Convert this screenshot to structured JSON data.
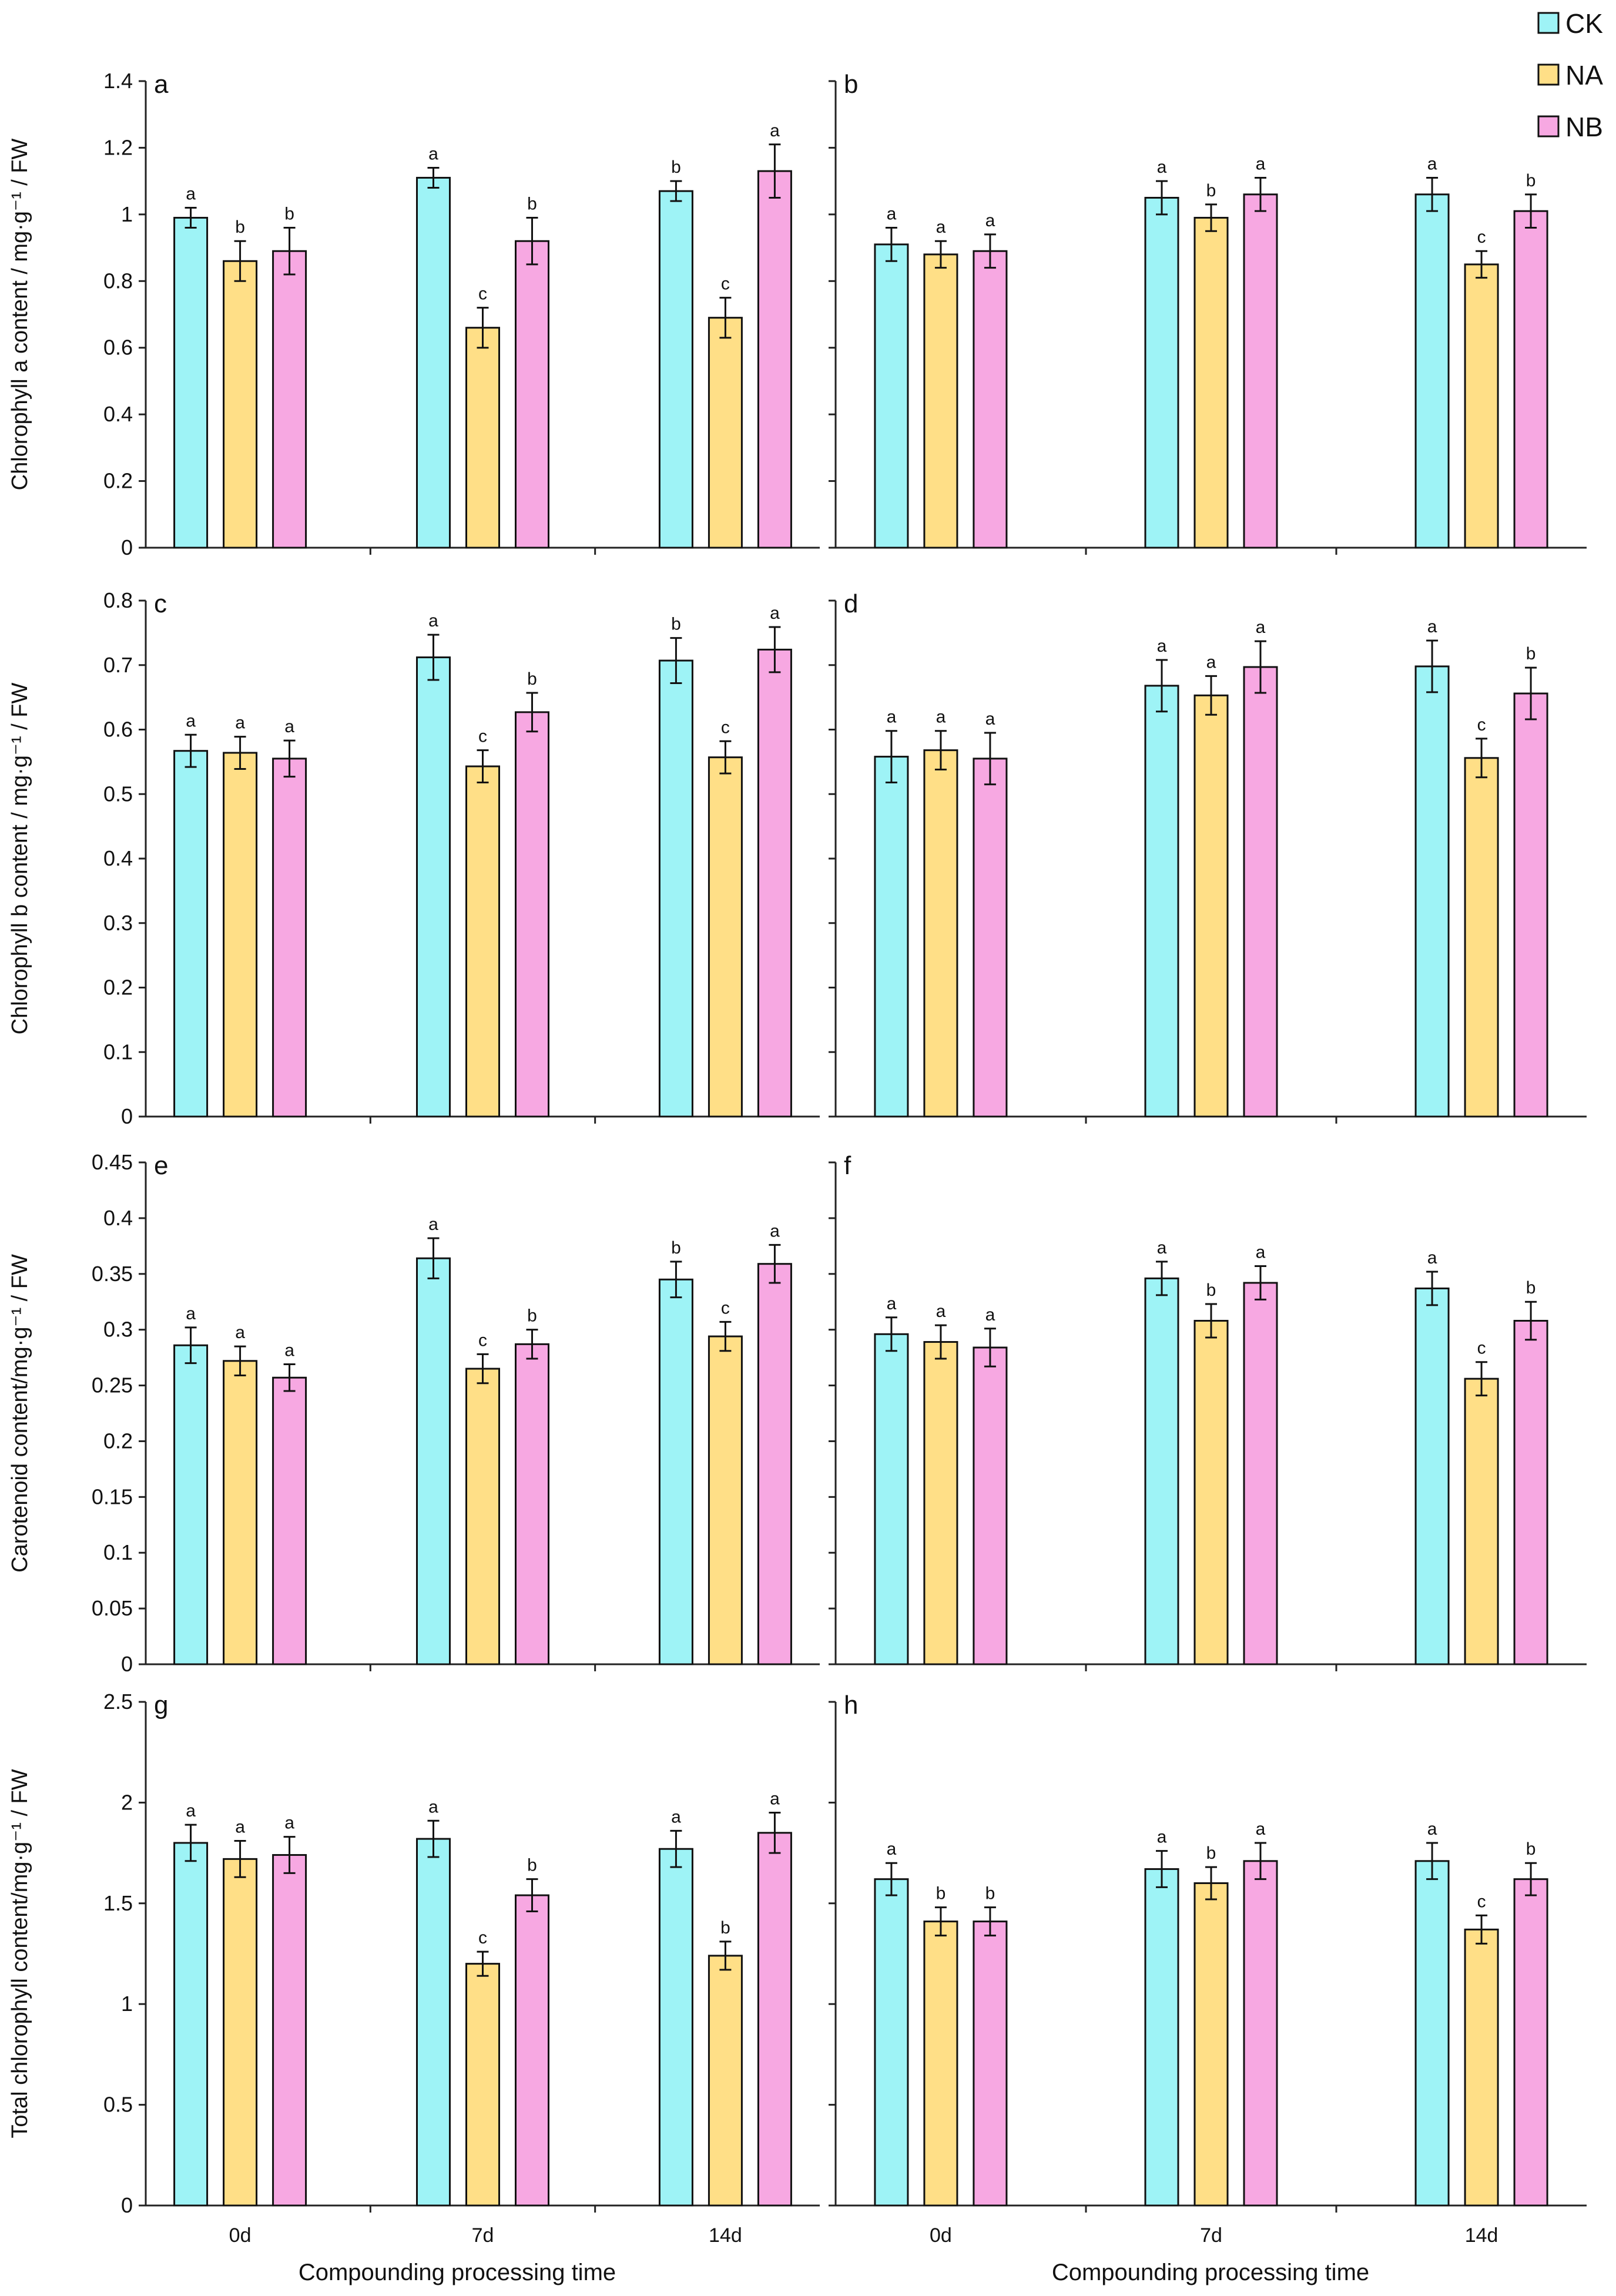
{
  "figure": {
    "series": [
      "CK",
      "NA",
      "NB"
    ],
    "colors": {
      "CK": "#9ef3f6",
      "NA": "#ffdf87",
      "NB": "#f7a8e2"
    },
    "categories": [
      "0d",
      "7d",
      "14d"
    ],
    "xlabel": "Compounding processing time"
  },
  "chart_data": [
    {
      "type": "bar",
      "panel": "a",
      "ylabel": "Chlorophyll a content / mg·g⁻¹ / FW",
      "ylim": [
        0,
        1.4
      ],
      "yticks": [
        "0",
        "0.2",
        "0.4",
        "0.6",
        "0.8",
        "1",
        "1.2",
        "1.4"
      ],
      "categories": [
        "0d",
        "7d",
        "14d"
      ],
      "series": [
        {
          "name": "CK",
          "values": [
            0.99,
            1.11,
            1.07
          ],
          "errors": [
            0.03,
            0.03,
            0.03
          ],
          "letters": [
            "a",
            "a",
            "b"
          ]
        },
        {
          "name": "NA",
          "values": [
            0.86,
            0.66,
            0.69
          ],
          "errors": [
            0.06,
            0.06,
            0.06
          ],
          "letters": [
            "b",
            "c",
            "c"
          ]
        },
        {
          "name": "NB",
          "values": [
            0.89,
            0.92,
            1.13
          ],
          "errors": [
            0.07,
            0.07,
            0.08
          ],
          "letters": [
            "b",
            "b",
            "a"
          ]
        }
      ]
    },
    {
      "type": "bar",
      "panel": "b",
      "ylabel": "",
      "ylim": [
        0,
        1.4
      ],
      "yticks": [],
      "categories": [
        "0d",
        "7d",
        "14d"
      ],
      "series": [
        {
          "name": "CK",
          "values": [
            0.91,
            1.05,
            1.06
          ],
          "errors": [
            0.05,
            0.05,
            0.05
          ],
          "letters": [
            "a",
            "a",
            "a"
          ]
        },
        {
          "name": "NA",
          "values": [
            0.88,
            0.99,
            0.85
          ],
          "errors": [
            0.04,
            0.04,
            0.04
          ],
          "letters": [
            "a",
            "b",
            "c"
          ]
        },
        {
          "name": "NB",
          "values": [
            0.89,
            1.06,
            1.01
          ],
          "errors": [
            0.05,
            0.05,
            0.05
          ],
          "letters": [
            "a",
            "a",
            "b"
          ]
        }
      ]
    },
    {
      "type": "bar",
      "panel": "c",
      "ylabel": "Chlorophyll b content / mg·g⁻¹ / FW",
      "ylim": [
        0,
        0.8
      ],
      "yticks": [
        "0",
        "0.1",
        "0.2",
        "0.3",
        "0.4",
        "0.5",
        "0.6",
        "0.7",
        "0.8"
      ],
      "categories": [
        "0d",
        "7d",
        "14d"
      ],
      "series": [
        {
          "name": "CK",
          "values": [
            0.567,
            0.712,
            0.707
          ],
          "errors": [
            0.025,
            0.035,
            0.035
          ],
          "letters": [
            "a",
            "a",
            "b"
          ]
        },
        {
          "name": "NA",
          "values": [
            0.564,
            0.543,
            0.557
          ],
          "errors": [
            0.025,
            0.025,
            0.025
          ],
          "letters": [
            "a",
            "c",
            "c"
          ]
        },
        {
          "name": "NB",
          "values": [
            0.555,
            0.627,
            0.724
          ],
          "errors": [
            0.028,
            0.03,
            0.035
          ],
          "letters": [
            "a",
            "b",
            "a"
          ]
        }
      ]
    },
    {
      "type": "bar",
      "panel": "d",
      "ylabel": "",
      "ylim": [
        0,
        0.8
      ],
      "yticks": [],
      "categories": [
        "0d",
        "7d",
        "14d"
      ],
      "series": [
        {
          "name": "CK",
          "values": [
            0.558,
            0.668,
            0.698
          ],
          "errors": [
            0.04,
            0.04,
            0.04
          ],
          "letters": [
            "a",
            "a",
            "a"
          ]
        },
        {
          "name": "NA",
          "values": [
            0.568,
            0.653,
            0.556
          ],
          "errors": [
            0.03,
            0.03,
            0.03
          ],
          "letters": [
            "a",
            "a",
            "c"
          ]
        },
        {
          "name": "NB",
          "values": [
            0.555,
            0.697,
            0.656
          ],
          "errors": [
            0.04,
            0.04,
            0.04
          ],
          "letters": [
            "a",
            "a",
            "b"
          ]
        }
      ]
    },
    {
      "type": "bar",
      "panel": "e",
      "ylabel": "Carotenoid content/mg·g⁻¹ / FW",
      "ylim": [
        0,
        0.45
      ],
      "yticks": [
        "0",
        "0.05",
        "0.1",
        "0.15",
        "0.2",
        "0.25",
        "0.3",
        "0.35",
        "0.4",
        "0.45"
      ],
      "categories": [
        "0d",
        "7d",
        "14d"
      ],
      "series": [
        {
          "name": "CK",
          "values": [
            0.286,
            0.364,
            0.345
          ],
          "errors": [
            0.016,
            0.018,
            0.016
          ],
          "letters": [
            "a",
            "a",
            "b"
          ]
        },
        {
          "name": "NA",
          "values": [
            0.272,
            0.265,
            0.294
          ],
          "errors": [
            0.013,
            0.013,
            0.013
          ],
          "letters": [
            "a",
            "c",
            "c"
          ]
        },
        {
          "name": "NB",
          "values": [
            0.257,
            0.287,
            0.359
          ],
          "errors": [
            0.012,
            0.013,
            0.017
          ],
          "letters": [
            "a",
            "b",
            "a"
          ]
        }
      ]
    },
    {
      "type": "bar",
      "panel": "f",
      "ylabel": "",
      "ylim": [
        0,
        0.45
      ],
      "yticks": [],
      "categories": [
        "0d",
        "7d",
        "14d"
      ],
      "series": [
        {
          "name": "CK",
          "values": [
            0.296,
            0.346,
            0.337
          ],
          "errors": [
            0.015,
            0.015,
            0.015
          ],
          "letters": [
            "a",
            "a",
            "a"
          ]
        },
        {
          "name": "NA",
          "values": [
            0.289,
            0.308,
            0.256
          ],
          "errors": [
            0.015,
            0.015,
            0.015
          ],
          "letters": [
            "a",
            "b",
            "c"
          ]
        },
        {
          "name": "NB",
          "values": [
            0.284,
            0.342,
            0.308
          ],
          "errors": [
            0.017,
            0.015,
            0.017
          ],
          "letters": [
            "a",
            "a",
            "b"
          ]
        }
      ]
    },
    {
      "type": "bar",
      "panel": "g",
      "ylabel": "Total chlorophyll content/mg·g⁻¹ / FW",
      "ylim": [
        0,
        2.5
      ],
      "yticks": [
        "0",
        "0.5",
        "1",
        "1.5",
        "2",
        "2.5"
      ],
      "categories": [
        "0d",
        "7d",
        "14d"
      ],
      "series": [
        {
          "name": "CK",
          "values": [
            1.8,
            1.82,
            1.77
          ],
          "errors": [
            0.09,
            0.09,
            0.09
          ],
          "letters": [
            "a",
            "a",
            "a"
          ]
        },
        {
          "name": "NA",
          "values": [
            1.72,
            1.2,
            1.24
          ],
          "errors": [
            0.09,
            0.06,
            0.07
          ],
          "letters": [
            "a",
            "c",
            "b"
          ]
        },
        {
          "name": "NB",
          "values": [
            1.74,
            1.54,
            1.85
          ],
          "errors": [
            0.09,
            0.08,
            0.1
          ],
          "letters": [
            "a",
            "b",
            "a"
          ]
        }
      ]
    },
    {
      "type": "bar",
      "panel": "h",
      "ylabel": "",
      "ylim": [
        0,
        2.5
      ],
      "yticks": [],
      "categories": [
        "0d",
        "7d",
        "14d"
      ],
      "series": [
        {
          "name": "CK",
          "values": [
            1.62,
            1.67,
            1.71
          ],
          "errors": [
            0.08,
            0.09,
            0.09
          ],
          "letters": [
            "a",
            "a",
            "a"
          ]
        },
        {
          "name": "NA",
          "values": [
            1.41,
            1.6,
            1.37
          ],
          "errors": [
            0.07,
            0.08,
            0.07
          ],
          "letters": [
            "b",
            "b",
            "c"
          ]
        },
        {
          "name": "NB",
          "values": [
            1.41,
            1.71,
            1.62
          ],
          "errors": [
            0.07,
            0.09,
            0.08
          ],
          "letters": [
            "b",
            "a",
            "b"
          ]
        }
      ]
    }
  ]
}
